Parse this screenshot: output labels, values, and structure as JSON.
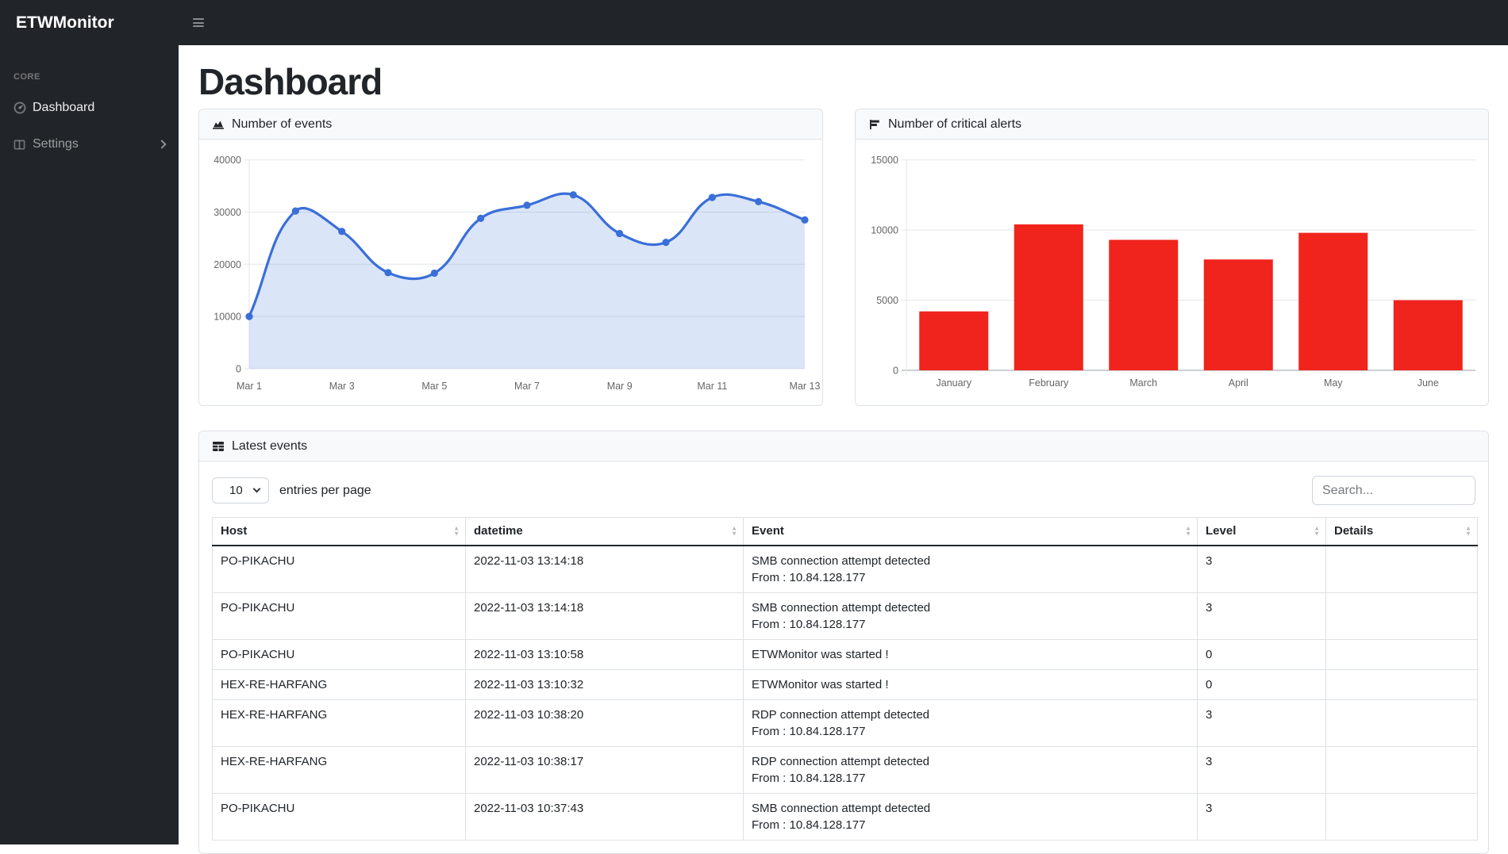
{
  "app": {
    "brand": "ETWMonitor"
  },
  "sidebar": {
    "section_label": "CORE",
    "items": [
      {
        "label": "Dashboard",
        "active": true
      },
      {
        "label": "Settings",
        "active": false,
        "has_submenu": true
      }
    ]
  },
  "page": {
    "title": "Dashboard"
  },
  "chart_data": [
    {
      "type": "area",
      "title": "Number of events",
      "x": [
        "Mar 1",
        "Mar 2",
        "Mar 3",
        "Mar 4",
        "Mar 5",
        "Mar 6",
        "Mar 7",
        "Mar 8",
        "Mar 9",
        "Mar 10",
        "Mar 11",
        "Mar 12",
        "Mar 13"
      ],
      "x_tick_labels": [
        "Mar 1",
        "Mar 3",
        "Mar 5",
        "Mar 7",
        "Mar 9",
        "Mar 11",
        "Mar 13"
      ],
      "values": [
        10000,
        30200,
        26300,
        18400,
        18300,
        28800,
        31300,
        33300,
        25900,
        24200,
        32800,
        32000,
        28500
      ],
      "ylim": [
        0,
        40000
      ],
      "yticks": [
        0,
        10000,
        20000,
        30000,
        40000
      ],
      "line_color": "#3a6fd8",
      "fill_color": "rgba(58,111,216,0.18)",
      "grid": true,
      "legend": false
    },
    {
      "type": "bar",
      "title": "Number of critical alerts",
      "categories": [
        "January",
        "February",
        "March",
        "April",
        "May",
        "June"
      ],
      "values": [
        4200,
        10400,
        9300,
        7900,
        9800,
        5000
      ],
      "ylim": [
        0,
        15000
      ],
      "yticks": [
        0,
        5000,
        10000,
        15000
      ],
      "bar_color": "#f0241c",
      "grid": true,
      "legend": false
    }
  ],
  "latest_events": {
    "title": "Latest events",
    "entries_per_page_value": "10",
    "entries_per_page_label": "entries per page",
    "search_placeholder": "Search...",
    "columns": [
      "Host",
      "datetime",
      "Event",
      "Level",
      "Details"
    ],
    "rows": [
      {
        "host": "PO-PIKACHU",
        "datetime": "2022-11-03 13:14:18",
        "event": [
          "SMB connection attempt detected",
          "From : 10.84.128.177"
        ],
        "level": "3",
        "details": ""
      },
      {
        "host": "PO-PIKACHU",
        "datetime": "2022-11-03 13:14:18",
        "event": [
          "SMB connection attempt detected",
          "From : 10.84.128.177"
        ],
        "level": "3",
        "details": ""
      },
      {
        "host": "PO-PIKACHU",
        "datetime": "2022-11-03 13:10:58",
        "event": [
          "ETWMonitor was started !"
        ],
        "level": "0",
        "details": ""
      },
      {
        "host": "HEX-RE-HARFANG",
        "datetime": "2022-11-03 13:10:32",
        "event": [
          "ETWMonitor was started !"
        ],
        "level": "0",
        "details": ""
      },
      {
        "host": "HEX-RE-HARFANG",
        "datetime": "2022-11-03 10:38:20",
        "event": [
          "RDP connection attempt detected",
          "From : 10.84.128.177"
        ],
        "level": "3",
        "details": ""
      },
      {
        "host": "HEX-RE-HARFANG",
        "datetime": "2022-11-03 10:38:17",
        "event": [
          "RDP connection attempt detected",
          "From : 10.84.128.177"
        ],
        "level": "3",
        "details": ""
      },
      {
        "host": "PO-PIKACHU",
        "datetime": "2022-11-03 10:37:43",
        "event": [
          "SMB connection attempt detected",
          "From : 10.84.128.177"
        ],
        "level": "3",
        "details": ""
      }
    ]
  }
}
